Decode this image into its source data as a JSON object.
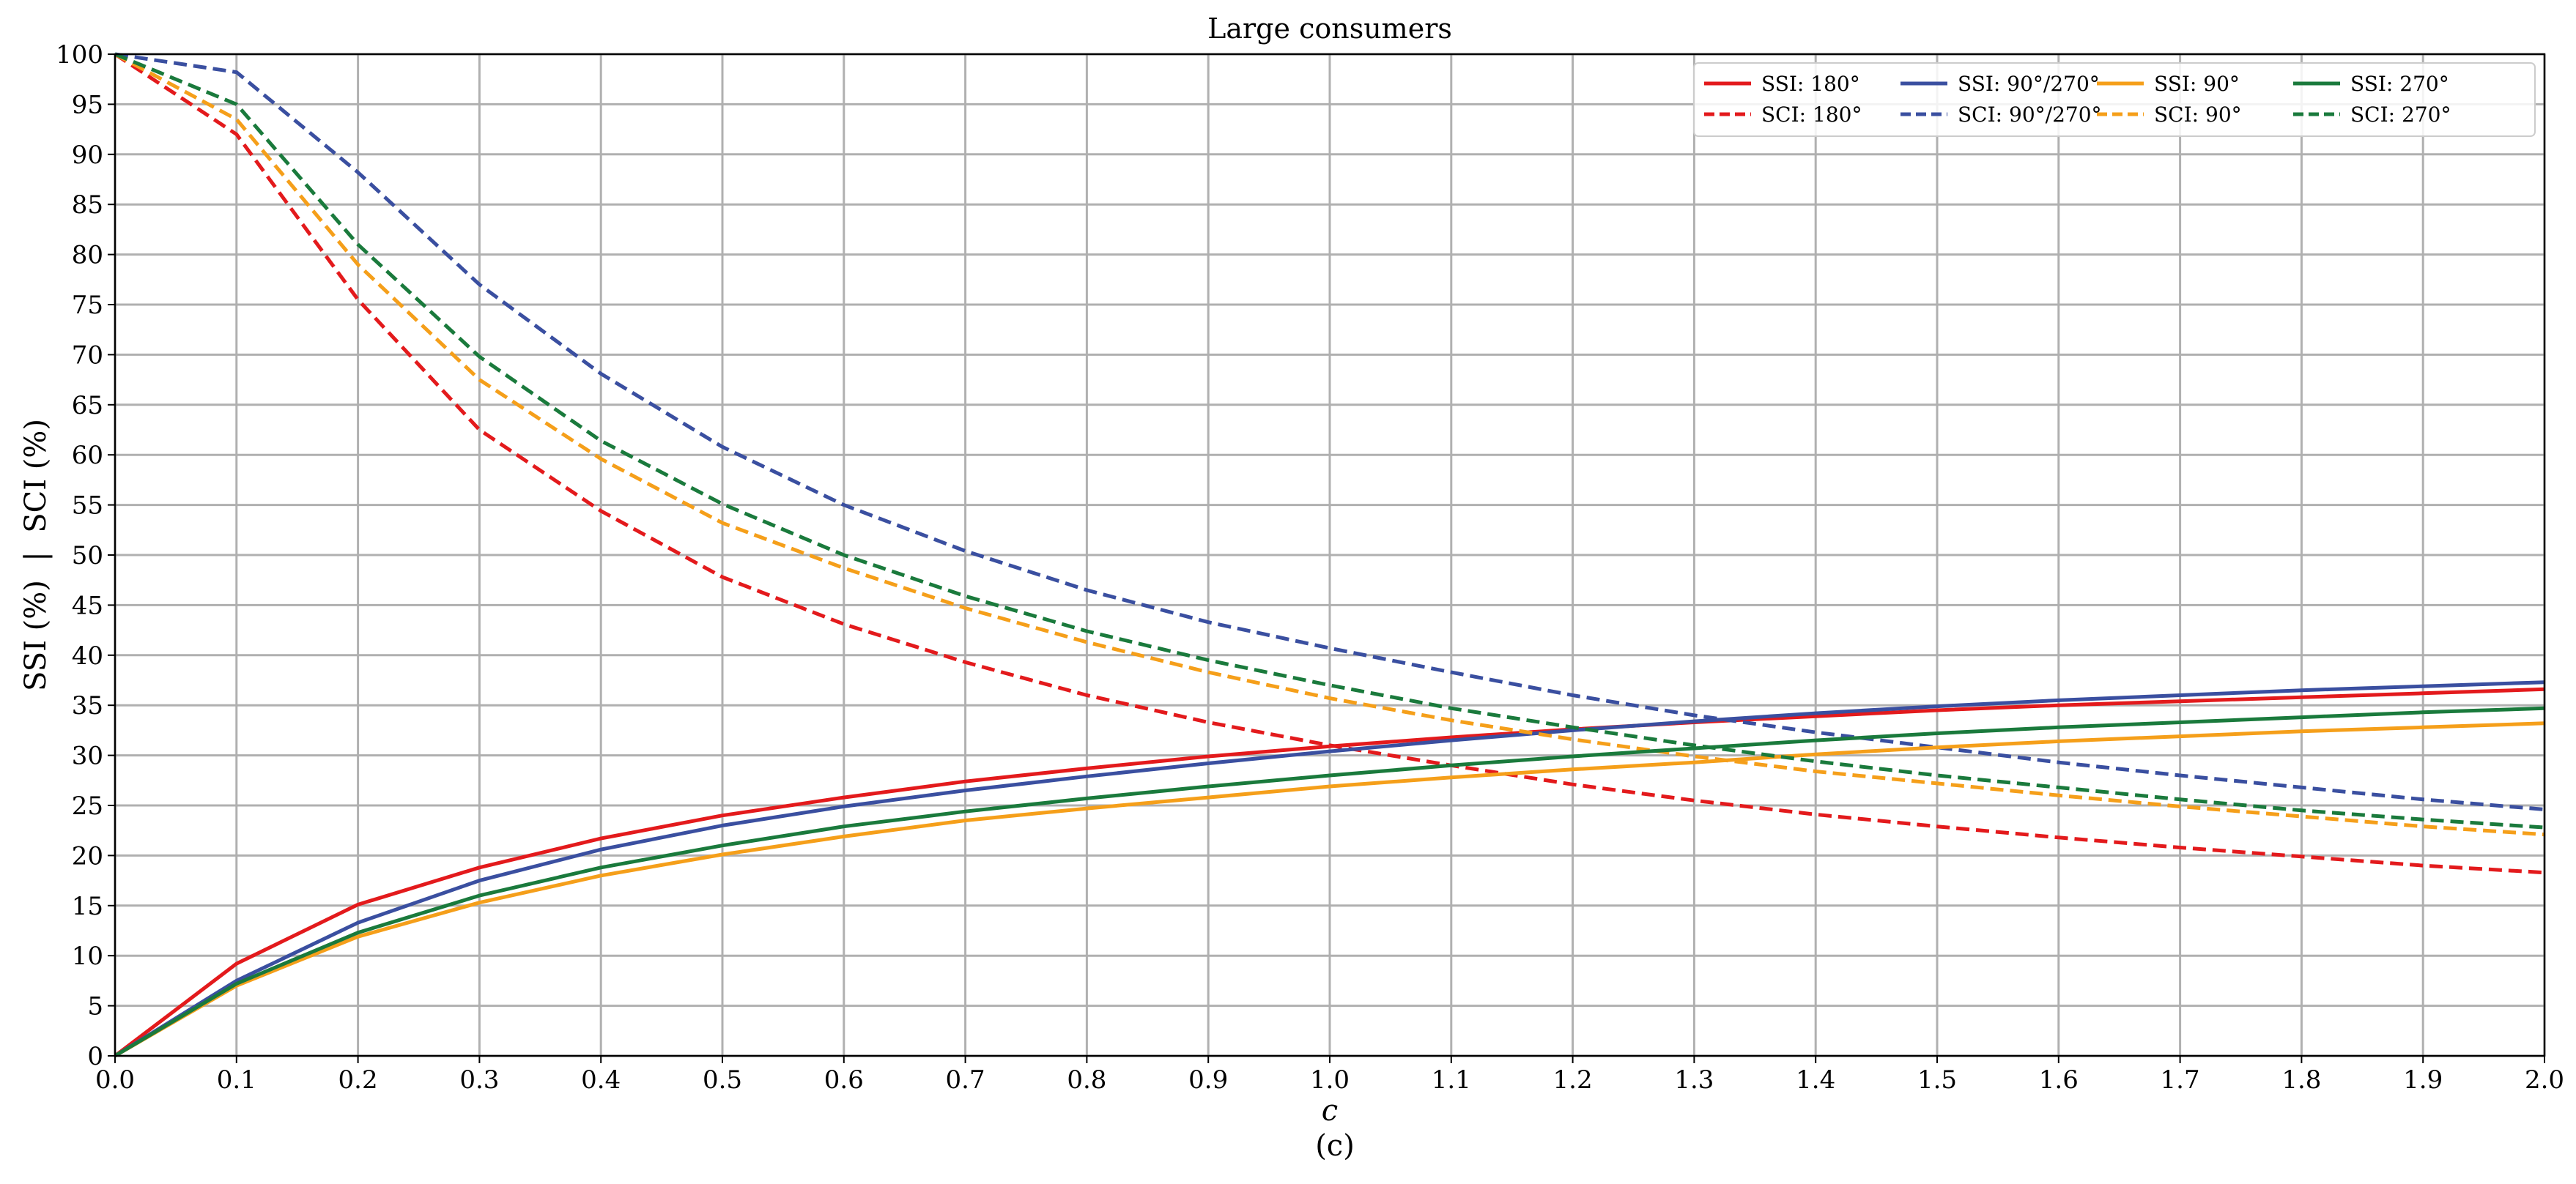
{
  "chart_data": {
    "type": "line",
    "title": "Large consumers",
    "xlabel": "c",
    "ylabel": "SSI (%)  |  SCI (%)",
    "caption": "(c)",
    "xlim": [
      0,
      2.0
    ],
    "ylim": [
      0,
      100
    ],
    "x_ticks": [
      0.0,
      0.1,
      0.2,
      0.3,
      0.4,
      0.5,
      0.6,
      0.7,
      0.8,
      0.9,
      1.0,
      1.1,
      1.2,
      1.3,
      1.4,
      1.5,
      1.6,
      1.7,
      1.8,
      1.9,
      2.0
    ],
    "x_tick_labels": [
      "0.0",
      "0.1",
      "0.2",
      "0.3",
      "0.4",
      "0.5",
      "0.6",
      "0.7",
      "0.8",
      "0.9",
      "1.0",
      "1.1",
      "1.2",
      "1.3",
      "1.4",
      "1.5",
      "1.6",
      "1.7",
      "1.8",
      "1.9",
      "2.0"
    ],
    "y_ticks": [
      0,
      5,
      10,
      15,
      20,
      25,
      30,
      35,
      40,
      45,
      50,
      55,
      60,
      65,
      70,
      75,
      80,
      85,
      90,
      95,
      100
    ],
    "y_tick_labels": [
      "0",
      "5",
      "10",
      "15",
      "20",
      "25",
      "30",
      "35",
      "40",
      "45",
      "50",
      "55",
      "60",
      "65",
      "70",
      "75",
      "80",
      "85",
      "90",
      "95",
      "100"
    ],
    "grid": true,
    "legend_position": "top-right",
    "legend_columns": 4,
    "x": [
      0.0,
      0.1,
      0.2,
      0.3,
      0.4,
      0.5,
      0.6,
      0.7,
      0.8,
      0.9,
      1.0,
      1.1,
      1.2,
      1.3,
      1.4,
      1.5,
      1.6,
      1.7,
      1.8,
      1.9,
      2.0
    ],
    "series": [
      {
        "name": "SSI: 180°",
        "color": "#e31a1c",
        "dash": "solid",
        "values": [
          0,
          9.2,
          15.1,
          18.8,
          21.7,
          24.0,
          25.8,
          27.4,
          28.7,
          29.9,
          30.9,
          31.8,
          32.6,
          33.3,
          33.9,
          34.5,
          35.0,
          35.4,
          35.8,
          36.2,
          36.6
        ]
      },
      {
        "name": "SCI: 180°",
        "color": "#e31a1c",
        "dash": "dashed",
        "values": [
          100,
          92.0,
          75.5,
          62.5,
          54.4,
          47.8,
          43.1,
          39.3,
          36.0,
          33.3,
          31.0,
          29.0,
          27.1,
          25.5,
          24.1,
          22.9,
          21.8,
          20.8,
          19.9,
          19.0,
          18.3
        ]
      },
      {
        "name": "SSI: 90°/270°",
        "color": "#3a4fa0",
        "dash": "solid",
        "values": [
          0,
          7.5,
          13.3,
          17.5,
          20.6,
          23.0,
          24.9,
          26.5,
          27.9,
          29.2,
          30.4,
          31.5,
          32.5,
          33.4,
          34.2,
          34.9,
          35.5,
          36.0,
          36.5,
          36.9,
          37.3
        ]
      },
      {
        "name": "SCI: 90°/270°",
        "color": "#3a4fa0",
        "dash": "dashed",
        "values": [
          100,
          98.2,
          88.2,
          77.0,
          68.1,
          60.8,
          55.0,
          50.4,
          46.5,
          43.3,
          40.7,
          38.3,
          36.0,
          34.0,
          32.3,
          30.8,
          29.3,
          28.0,
          26.8,
          25.6,
          24.6
        ]
      },
      {
        "name": "SSI: 90°",
        "color": "#f59f1a",
        "dash": "solid",
        "values": [
          0,
          7.0,
          11.9,
          15.3,
          18.0,
          20.1,
          21.9,
          23.5,
          24.7,
          25.8,
          26.9,
          27.8,
          28.6,
          29.3,
          30.1,
          30.8,
          31.4,
          31.9,
          32.4,
          32.8,
          33.2
        ]
      },
      {
        "name": "SCI: 90°",
        "color": "#f59f1a",
        "dash": "dashed",
        "values": [
          100,
          93.5,
          79.0,
          67.5,
          59.6,
          53.2,
          48.7,
          44.7,
          41.3,
          38.3,
          35.7,
          33.5,
          31.6,
          29.9,
          28.4,
          27.2,
          26.0,
          24.9,
          23.9,
          22.9,
          22.1
        ]
      },
      {
        "name": "SSI: 270°",
        "color": "#1a7a3c",
        "dash": "solid",
        "values": [
          0,
          7.2,
          12.3,
          16.0,
          18.8,
          21.0,
          22.9,
          24.4,
          25.7,
          26.9,
          28.0,
          29.0,
          29.9,
          30.7,
          31.5,
          32.2,
          32.8,
          33.3,
          33.8,
          34.3,
          34.7
        ]
      },
      {
        "name": "SCI: 270°",
        "color": "#1a7a3c",
        "dash": "dashed",
        "values": [
          100,
          95.0,
          81.0,
          69.8,
          61.4,
          55.1,
          50.0,
          45.9,
          42.4,
          39.5,
          37.0,
          34.7,
          32.8,
          31.0,
          29.4,
          28.0,
          26.8,
          25.6,
          24.5,
          23.6,
          22.8
        ]
      }
    ],
    "legend_order": [
      0,
      2,
      4,
      6,
      1,
      3,
      5,
      7
    ]
  }
}
